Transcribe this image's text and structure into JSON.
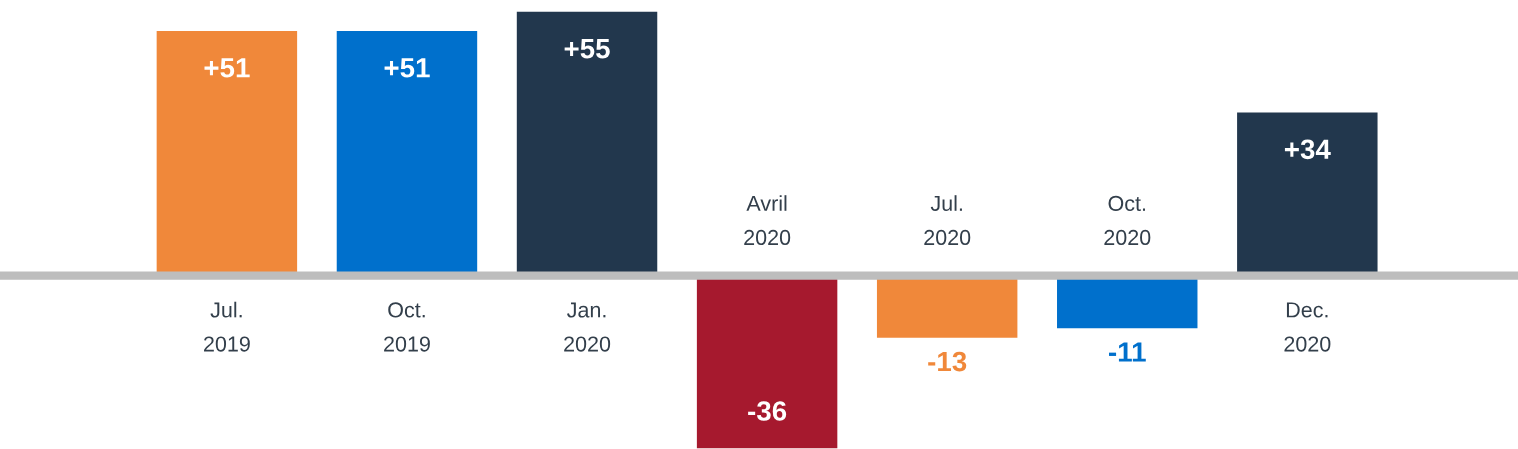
{
  "chart_data": {
    "type": "bar",
    "categories": [
      "Jul.\n2019",
      "Oct.\n2019",
      "Jan.\n2020",
      "Avril\n2020",
      "Jul.\n2020",
      "Oct.\n2020",
      "Dec.\n2020"
    ],
    "values": [
      51,
      51,
      55,
      -36,
      -13,
      -11,
      34
    ],
    "value_labels": [
      "+51",
      "+51",
      "+55",
      "-36",
      "-13",
      "-11",
      "+34"
    ],
    "colors": [
      "#f0883a",
      "#0070cc",
      "#22374d",
      "#a6192e",
      "#f0883a",
      "#0070cc",
      "#22374d"
    ],
    "legend": false
  }
}
